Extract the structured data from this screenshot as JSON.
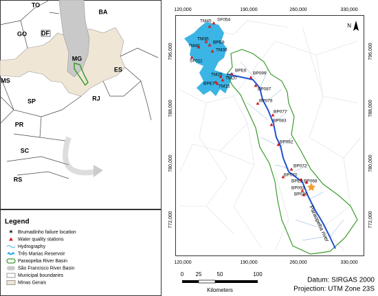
{
  "inset": {
    "labels": [
      "TO",
      "BA",
      "GO",
      "DF",
      "MG",
      "ES",
      "MS",
      "SP",
      "RJ",
      "PR",
      "SC",
      "RS"
    ]
  },
  "legend": {
    "title": "Legend",
    "items": [
      "Brumadinho failure location",
      "Water quality stations",
      "Hydrography",
      "Três Marias Reservoir",
      "Paraopeba River Basin",
      "São Francisco River Basin",
      "Municipal boundaries",
      "Minas Gerais"
    ]
  },
  "map": {
    "x_labels_top": [
      "120,000",
      "190,000",
      "260,000",
      "330,000"
    ],
    "x_labels_bottom": [
      "120,000",
      "190,000",
      "260,000",
      "330,000"
    ],
    "y_labels_left": [
      "796,000",
      "788,000",
      "780,000",
      "772,000"
    ],
    "y_labels_right": [
      "796,000",
      "788,000",
      "780,000",
      "772,000"
    ],
    "north": "N",
    "stations": [
      "SF054",
      "TM45",
      "BPE8",
      "TM35",
      "TM40",
      "TM30",
      "SF011",
      "BPE6",
      "BP099",
      "TM25",
      "TM20",
      "BPE7",
      "TM15",
      "BP087",
      "BP078",
      "BP077",
      "BP083",
      "BP082",
      "BP072",
      "BP070",
      "BPE2",
      "BP068",
      "BP093",
      "BP036"
    ],
    "river_label": "Paraopeba river"
  },
  "scale": {
    "ticks": [
      "0",
      "25",
      "50",
      "100"
    ],
    "unit": "Kilometers"
  },
  "footer": {
    "datum": "Datum: SIRGAS 2000",
    "projection": "Projection: UTM Zone 23S"
  }
}
